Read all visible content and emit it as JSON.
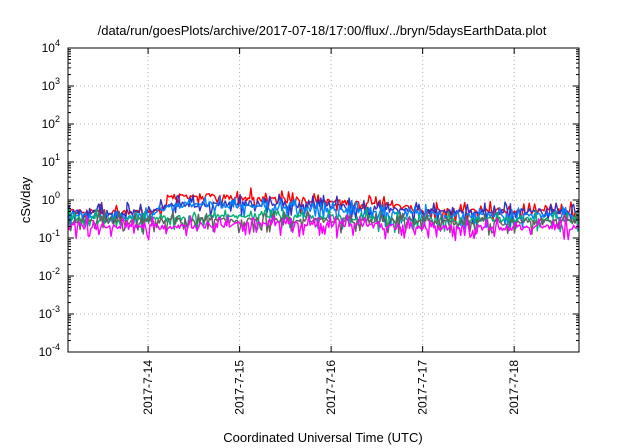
{
  "chart_data": {
    "type": "line",
    "title": "/data/run/goesPlots/archive/2017-07-18/17:00/flux/../bryn/5daysEarthData.plot",
    "xlabel": "Coordinated Universal Time (UTC)",
    "ylabel": "cSv/day",
    "yscale": "log",
    "ylim": [
      0.0001,
      10000
    ],
    "xlim": [
      "2017-07-13T03:00",
      "2017-07-18T17:00"
    ],
    "grid": true,
    "y_ticks": [
      {
        "value": 0.0001,
        "base": "10",
        "exp": "-4"
      },
      {
        "value": 0.001,
        "base": "10",
        "exp": "-3"
      },
      {
        "value": 0.01,
        "base": "10",
        "exp": "-2"
      },
      {
        "value": 0.1,
        "base": "10",
        "exp": "-1"
      },
      {
        "value": 1,
        "base": "10",
        "exp": "0"
      },
      {
        "value": 10,
        "base": "10",
        "exp": "1"
      },
      {
        "value": 100,
        "base": "10",
        "exp": "2"
      },
      {
        "value": 1000,
        "base": "10",
        "exp": "3"
      },
      {
        "value": 10000,
        "base": "10",
        "exp": "4"
      }
    ],
    "x_ticks": [
      {
        "value": "2017-07-14T00:00",
        "label": "2017-7-14"
      },
      {
        "value": "2017-07-15T00:00",
        "label": "2017-7-15"
      },
      {
        "value": "2017-07-16T00:00",
        "label": "2017-7-16"
      },
      {
        "value": "2017-07-17T00:00",
        "label": "2017-7-17"
      },
      {
        "value": "2017-07-18T00:00",
        "label": "2017-7-18"
      }
    ],
    "series": [
      {
        "color": "#ff0000",
        "x": [
          "2017-07-13T03:00",
          "2017-07-13T12:00",
          "2017-07-14T00:00",
          "2017-07-14T04:00",
          "2017-07-14T06:00",
          "2017-07-14T12:00",
          "2017-07-15T00:00",
          "2017-07-15T12:00",
          "2017-07-16T00:00",
          "2017-07-16T12:00",
          "2017-07-17T00:00",
          "2017-07-17T12:00",
          "2017-07-18T00:00",
          "2017-07-18T17:00"
        ],
        "y": [
          0.5,
          0.48,
          0.47,
          0.6,
          1.2,
          1.3,
          1.15,
          1.0,
          0.9,
          0.8,
          0.55,
          0.5,
          0.5,
          0.52
        ]
      },
      {
        "color": "#3030c0",
        "x": [
          "2017-07-13T03:00",
          "2017-07-14T00:00",
          "2017-07-14T06:00",
          "2017-07-15T00:00",
          "2017-07-16T00:00",
          "2017-07-17T00:00",
          "2017-07-18T00:00",
          "2017-07-18T17:00"
        ],
        "y": [
          0.5,
          0.47,
          0.75,
          0.85,
          0.7,
          0.5,
          0.5,
          0.5
        ]
      },
      {
        "color": "#0080ff",
        "x": [
          "2017-07-13T03:00",
          "2017-07-14T00:00",
          "2017-07-14T06:00",
          "2017-07-14T12:00",
          "2017-07-15T00:00",
          "2017-07-16T00:00",
          "2017-07-17T00:00",
          "2017-07-18T00:00",
          "2017-07-18T17:00"
        ],
        "y": [
          0.4,
          0.38,
          0.7,
          0.8,
          0.7,
          0.55,
          0.4,
          0.38,
          0.38
        ]
      },
      {
        "color": "#00b070",
        "x": [
          "2017-07-13T03:00",
          "2017-07-14T00:00",
          "2017-07-15T00:00",
          "2017-07-16T00:00",
          "2017-07-17T00:00",
          "2017-07-18T00:00",
          "2017-07-18T17:00"
        ],
        "y": [
          0.33,
          0.32,
          0.36,
          0.35,
          0.31,
          0.3,
          0.31
        ]
      },
      {
        "color": "#606060",
        "x": [
          "2017-07-13T03:00",
          "2017-07-14T00:00",
          "2017-07-15T00:00",
          "2017-07-16T00:00",
          "2017-07-17T00:00",
          "2017-07-18T00:00",
          "2017-07-18T17:00"
        ],
        "y": [
          0.28,
          0.28,
          0.3,
          0.3,
          0.27,
          0.26,
          0.27
        ]
      },
      {
        "color": "#ff00ff",
        "x": [
          "2017-07-13T03:00",
          "2017-07-14T00:00",
          "2017-07-15T00:00",
          "2017-07-16T00:00",
          "2017-07-17T00:00",
          "2017-07-18T00:00",
          "2017-07-18T17:00"
        ],
        "y": [
          0.2,
          0.2,
          0.23,
          0.23,
          0.19,
          0.19,
          0.2
        ]
      }
    ]
  }
}
